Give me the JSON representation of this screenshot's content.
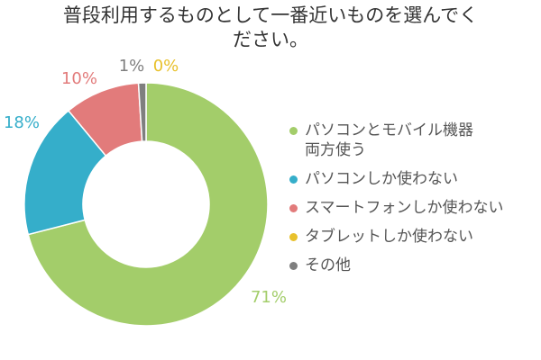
{
  "chart_data": {
    "type": "pie",
    "donut": true,
    "title": [
      "普段利用するものとして一番近いものを選んでく",
      "ださい。"
    ],
    "slices": [
      {
        "label": "パソコンとモバイル機器\n両方使う",
        "value": 71,
        "display": "71%",
        "color": "#a3cd6a"
      },
      {
        "label": "パソコンしか使わない",
        "value": 18,
        "display": "18%",
        "color": "#35aeca"
      },
      {
        "label": "スマートフォンしか使わない",
        "value": 10,
        "display": "10%",
        "color": "#e27b7b"
      },
      {
        "label": "タブレットしか使わない",
        "value": 0,
        "display": "0%",
        "color": "#e8c12c"
      },
      {
        "label": "その他",
        "value": 1,
        "display": "1%",
        "color": "#7f7f7f"
      }
    ],
    "legend_position": "right"
  }
}
